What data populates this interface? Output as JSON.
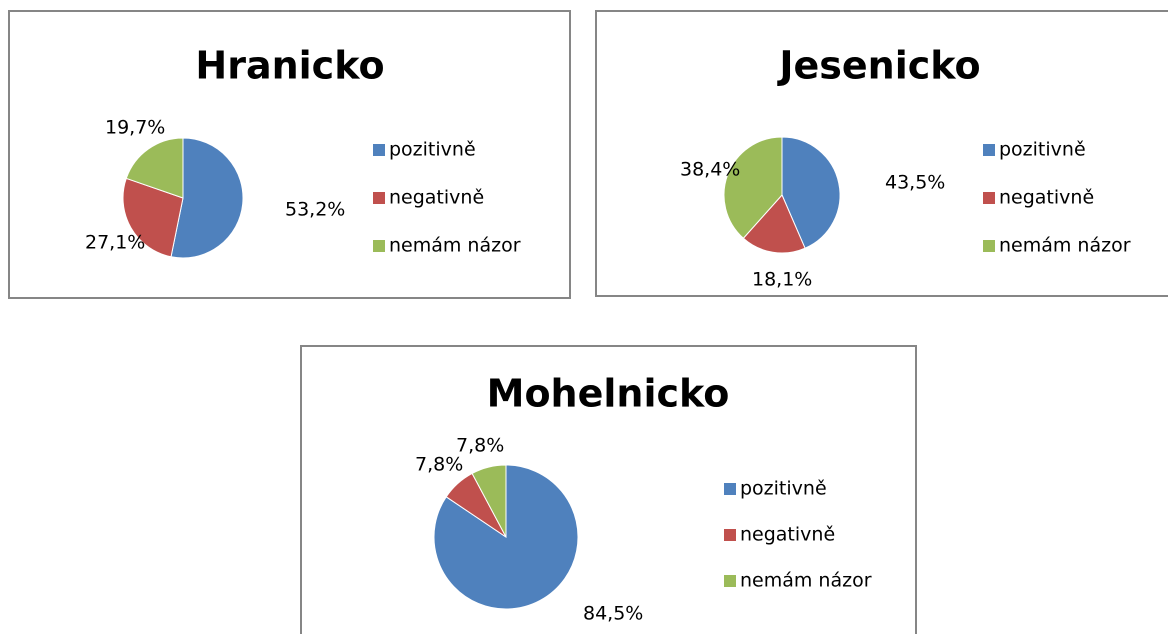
{
  "chart_data": [
    {
      "type": "pie",
      "title": "Hranicko",
      "categories": [
        "pozitivně",
        "negativně",
        "nemám názor"
      ],
      "values": [
        53.2,
        27.1,
        19.7
      ],
      "value_labels": [
        "53,2%",
        "27,1%",
        "19,7%"
      ],
      "colors": [
        "#4f81bd",
        "#c0504d",
        "#9bbb59"
      ]
    },
    {
      "type": "pie",
      "title": "Jesenicko",
      "categories": [
        "pozitivně",
        "negativně",
        "nemám názor"
      ],
      "values": [
        43.5,
        18.1,
        38.4
      ],
      "value_labels": [
        "43,5%",
        "18,1%",
        "38,4%"
      ],
      "colors": [
        "#4f81bd",
        "#c0504d",
        "#9bbb59"
      ]
    },
    {
      "type": "pie",
      "title": "Mohelnicko",
      "categories": [
        "pozitivně",
        "negativně",
        "nemám názor"
      ],
      "values": [
        84.5,
        7.8,
        7.8
      ],
      "value_labels": [
        "84,5%",
        "7,8%",
        "7,8%"
      ],
      "colors": [
        "#4f81bd",
        "#c0504d",
        "#9bbb59"
      ]
    }
  ]
}
